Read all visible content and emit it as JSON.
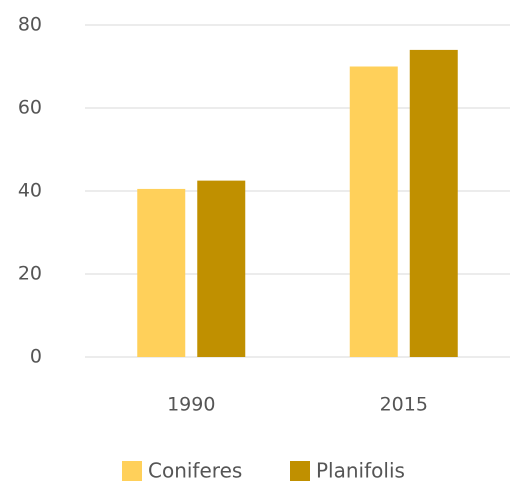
{
  "chart_data": {
    "type": "bar",
    "categories": [
      "1990",
      "2015"
    ],
    "series": [
      {
        "name": "Coniferes",
        "color": "#ffd05a",
        "values": [
          40.5,
          70
        ]
      },
      {
        "name": "Planifolis",
        "color": "#c09000",
        "values": [
          42.5,
          74
        ]
      }
    ],
    "ylim": [
      0,
      80
    ],
    "yticks": [
      0,
      20,
      40,
      60,
      80
    ],
    "grid": true,
    "legend": "bottom"
  }
}
